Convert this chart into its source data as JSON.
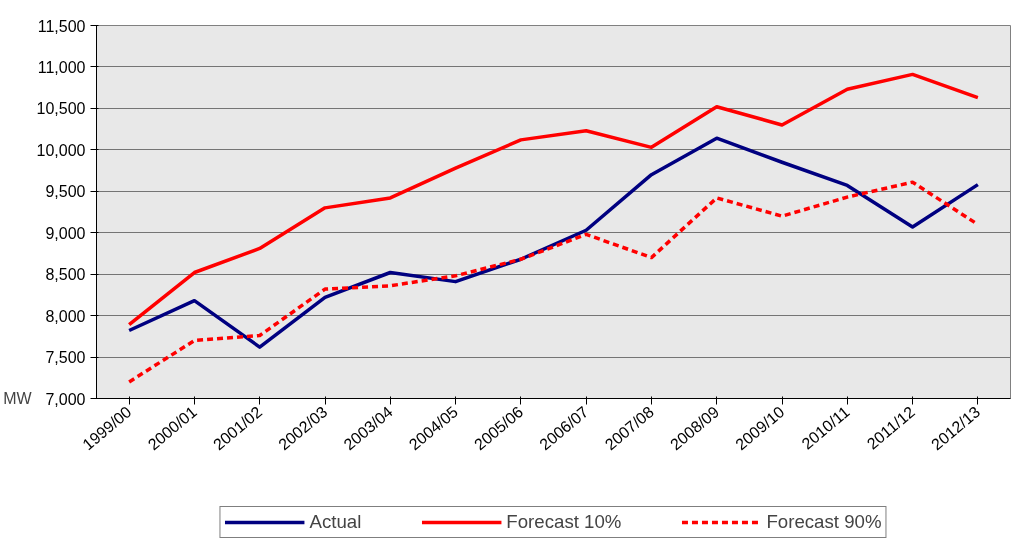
{
  "chart_data": {
    "type": "line",
    "ylabel": "MW",
    "categories": [
      "1999/00",
      "2000/01",
      "2001/02",
      "2002/03",
      "2003/04",
      "2004/05",
      "2005/06",
      "2006/07",
      "2007/08",
      "2008/09",
      "2009/10",
      "2010/11",
      "2011/12",
      "2012/13"
    ],
    "series": [
      {
        "name": "Actual",
        "color": "#000080",
        "line_style": "solid",
        "values": [
          7820,
          8180,
          7620,
          8220,
          8520,
          8410,
          8680,
          9030,
          9700,
          10140,
          9850,
          9570,
          9070,
          9580
        ]
      },
      {
        "name": "Forecast 10%",
        "color": "#ff0000",
        "line_style": "solid",
        "values": [
          7890,
          8520,
          8810,
          9300,
          9420,
          9780,
          10120,
          10230,
          10030,
          10520,
          10300,
          10730,
          10910,
          10630
        ]
      },
      {
        "name": "Forecast 90%",
        "color": "#ff0000",
        "line_style": "dashed",
        "values": [
          7200,
          7700,
          7760,
          8320,
          8360,
          8480,
          8680,
          8980,
          8700,
          9420,
          9200,
          9430,
          9610,
          9100
        ]
      }
    ],
    "ylim": [
      7000,
      11500
    ],
    "yticks": [
      {
        "value": 7000,
        "label": "7,000"
      },
      {
        "value": 7500,
        "label": "7,500"
      },
      {
        "value": 8000,
        "label": "8,000"
      },
      {
        "value": 8500,
        "label": "8,500"
      },
      {
        "value": 9000,
        "label": "9,000"
      },
      {
        "value": 9500,
        "label": "9,500"
      },
      {
        "value": 10000,
        "label": "10,000"
      },
      {
        "value": 10500,
        "label": "10,500"
      },
      {
        "value": 11000,
        "label": "11,000"
      },
      {
        "value": 11500,
        "label": "11,500"
      }
    ],
    "grid": "y",
    "legend": "bottom"
  }
}
